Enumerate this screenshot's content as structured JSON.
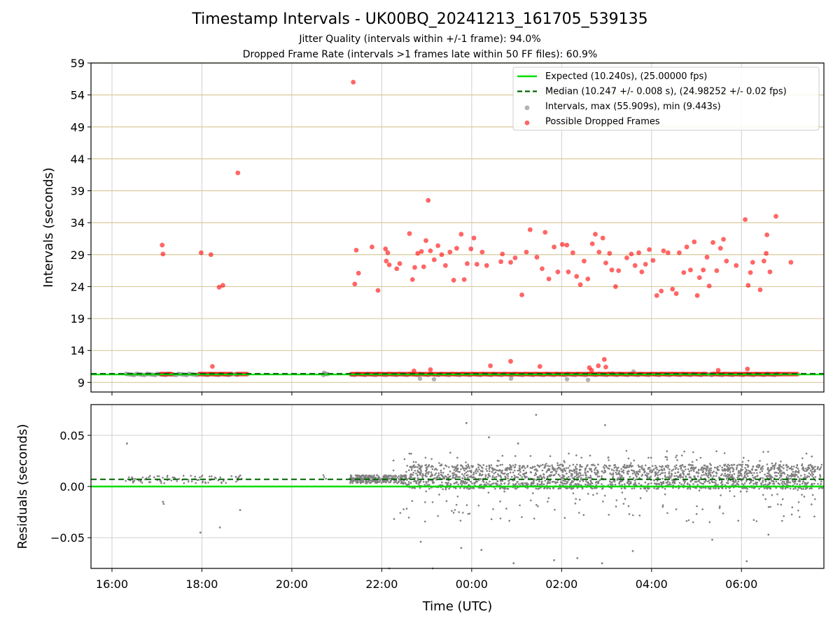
{
  "chart_data": [
    {
      "type": "scatter",
      "title": "Timestamp Intervals - UK00BQ_20241213_161705_539135",
      "subtitle_1": "Jitter Quality (intervals within +/-1 frame): 94.0%",
      "subtitle_2": "Dropped Frame Rate (intervals >1 frames late within 50 FF files): 60.9%",
      "ylabel": "Intervals (seconds)",
      "ylim": [
        7.5,
        59
      ],
      "yticks": [
        9,
        14,
        19,
        24,
        29,
        34,
        39,
        44,
        49,
        54,
        59
      ],
      "xlim_hours_utc": [
        "15:32",
        "07:50"
      ],
      "xticks": [
        "16:00",
        "18:00",
        "20:00",
        "22:00",
        "00:00",
        "02:00",
        "04:00",
        "06:00"
      ],
      "grid": true,
      "legend_position": "top-right",
      "series": [
        {
          "name": "Expected (10.240s), (25.00000 fps)",
          "kind": "hline",
          "y": 10.24,
          "color": "#00dd00",
          "style": "solid"
        },
        {
          "name": "Median (10.247 +/- 0.008 s), (24.98252 +/- 0.02 fps)",
          "kind": "hline",
          "y": 10.247,
          "color": "#006400",
          "style": "dashed"
        },
        {
          "name": "Intervals, max (55.909s), min (9.443s)",
          "kind": "scatter",
          "color": "#808080",
          "max": 55.909,
          "min": 9.443
        },
        {
          "name": "Possible Dropped Frames",
          "kind": "scatter",
          "color": "#ff0000",
          "points": [
            [
              "17:07",
              30.5
            ],
            [
              "17:08",
              29.1
            ],
            [
              "17:59",
              29.3
            ],
            [
              "18:12",
              29.0
            ],
            [
              "18:23",
              23.9
            ],
            [
              "18:28",
              24.2
            ],
            [
              "18:48",
              41.8
            ],
            [
              "21:22",
              56.0
            ],
            [
              "21:24",
              24.4
            ],
            [
              "21:26",
              29.7
            ],
            [
              "21:29",
              26.1
            ],
            [
              "21:47",
              30.2
            ],
            [
              "21:55",
              23.4
            ],
            [
              "22:05",
              29.9
            ],
            [
              "22:08",
              29.3
            ],
            [
              "22:06",
              28.0
            ],
            [
              "22:10",
              27.4
            ],
            [
              "22:20",
              26.8
            ],
            [
              "22:24",
              27.6
            ],
            [
              "22:37",
              32.3
            ],
            [
              "22:41",
              25.1
            ],
            [
              "22:44",
              27.0
            ],
            [
              "22:48",
              29.2
            ],
            [
              "22:53",
              29.5
            ],
            [
              "22:56",
              27.1
            ],
            [
              "22:59",
              31.2
            ],
            [
              "23:02",
              37.5
            ],
            [
              "23:05",
              29.6
            ],
            [
              "23:10",
              28.2
            ],
            [
              "23:15",
              30.4
            ],
            [
              "23:20",
              29.0
            ],
            [
              "23:25",
              27.3
            ],
            [
              "23:31",
              29.4
            ],
            [
              "23:36",
              25.0
            ],
            [
              "23:40",
              30.0
            ],
            [
              "23:46",
              32.2
            ],
            [
              "23:50",
              25.1
            ],
            [
              "23:54",
              27.6
            ],
            [
              "23:59",
              29.9
            ],
            [
              "00:03",
              31.6
            ],
            [
              "00:07",
              27.5
            ],
            [
              "00:14",
              29.4
            ],
            [
              "00:20",
              27.3
            ],
            [
              "00:39",
              27.9
            ],
            [
              "00:41",
              29.1
            ],
            [
              "00:52",
              27.8
            ],
            [
              "00:58",
              28.5
            ],
            [
              "01:07",
              22.7
            ],
            [
              "01:13",
              29.4
            ],
            [
              "01:18",
              32.9
            ],
            [
              "01:27",
              28.6
            ],
            [
              "01:34",
              26.8
            ],
            [
              "01:38",
              32.5
            ],
            [
              "01:43",
              25.2
            ],
            [
              "01:50",
              30.2
            ],
            [
              "01:55",
              26.3
            ],
            [
              "02:01",
              30.6
            ],
            [
              "02:07",
              30.5
            ],
            [
              "02:09",
              26.3
            ],
            [
              "02:15",
              29.3
            ],
            [
              "02:20",
              25.6
            ],
            [
              "02:25",
              24.3
            ],
            [
              "02:30",
              28.0
            ],
            [
              "02:35",
              25.2
            ],
            [
              "02:41",
              30.7
            ],
            [
              "02:45",
              32.2
            ],
            [
              "02:50",
              29.4
            ],
            [
              "02:55",
              31.6
            ],
            [
              "02:59",
              27.7
            ],
            [
              "03:04",
              29.2
            ],
            [
              "03:07",
              26.6
            ],
            [
              "03:12",
              24.0
            ],
            [
              "03:16",
              26.5
            ],
            [
              "03:27",
              28.5
            ],
            [
              "03:33",
              29.1
            ],
            [
              "03:38",
              27.3
            ],
            [
              "03:43",
              29.3
            ],
            [
              "03:47",
              26.3
            ],
            [
              "03:52",
              27.5
            ],
            [
              "03:57",
              29.8
            ],
            [
              "04:02",
              28.1
            ],
            [
              "04:07",
              22.6
            ],
            [
              "04:13",
              23.3
            ],
            [
              "04:16",
              29.6
            ],
            [
              "04:22",
              29.3
            ],
            [
              "04:28",
              23.6
            ],
            [
              "04:33",
              22.9
            ],
            [
              "04:37",
              29.3
            ],
            [
              "04:43",
              26.2
            ],
            [
              "04:47",
              30.2
            ],
            [
              "04:52",
              26.6
            ],
            [
              "04:57",
              31.0
            ],
            [
              "05:01",
              22.6
            ],
            [
              "05:04",
              25.4
            ],
            [
              "05:09",
              26.6
            ],
            [
              "05:14",
              28.6
            ],
            [
              "05:17",
              24.1
            ],
            [
              "05:22",
              30.9
            ],
            [
              "05:27",
              26.5
            ],
            [
              "05:32",
              30.0
            ],
            [
              "05:36",
              31.4
            ],
            [
              "05:40",
              28.0
            ],
            [
              "05:53",
              27.3
            ],
            [
              "06:05",
              34.5
            ],
            [
              "06:09",
              24.2
            ],
            [
              "06:12",
              26.2
            ],
            [
              "06:15",
              27.8
            ],
            [
              "06:25",
              23.5
            ],
            [
              "06:30",
              28.0
            ],
            [
              "06:33",
              29.2
            ],
            [
              "06:34",
              32.1
            ],
            [
              "06:38",
              26.3
            ],
            [
              "06:46",
              35.0
            ],
            [
              "07:06",
              27.8
            ],
            [
              "18:14",
              11.5
            ],
            [
              "22:43",
              10.8
            ],
            [
              "23:05",
              11.0
            ],
            [
              "00:25",
              11.6
            ],
            [
              "00:52",
              12.3
            ],
            [
              "01:31",
              11.5
            ],
            [
              "02:37",
              11.3
            ],
            [
              "02:40",
              10.9
            ],
            [
              "02:49",
              11.6
            ],
            [
              "02:57",
              12.6
            ],
            [
              "02:59",
              11.4
            ],
            [
              "05:29",
              10.9
            ],
            [
              "06:08",
              11.1
            ]
          ]
        }
      ]
    },
    {
      "type": "scatter",
      "xlabel": "Time (UTC)",
      "ylabel": "Residuals (seconds)",
      "ylim": [
        -0.08,
        0.08
      ],
      "yticks": [
        "−0.05",
        "0.00",
        "0.05"
      ],
      "xticks": [
        "16:00",
        "18:00",
        "20:00",
        "22:00",
        "00:00",
        "02:00",
        "04:00",
        "06:00"
      ],
      "grid": true,
      "series": [
        {
          "name": "Expected",
          "kind": "hline",
          "y": 0.0,
          "color": "#00dd00",
          "style": "solid"
        },
        {
          "name": "Median",
          "kind": "hline",
          "y": 0.007,
          "color": "#006400",
          "style": "dashed"
        },
        {
          "name": "Residuals",
          "kind": "scatter",
          "color": "#808080",
          "points": [
            [
              "16:20",
              0.042
            ],
            [
              "17:08",
              -0.015
            ],
            [
              "17:09",
              -0.017
            ],
            [
              "17:58",
              -0.045
            ],
            [
              "18:24",
              -0.04
            ],
            [
              "18:51",
              -0.023
            ],
            [
              "22:10",
              -0.08
            ],
            [
              "22:52",
              -0.054
            ],
            [
              "23:08",
              -0.08
            ],
            [
              "23:46",
              -0.06
            ],
            [
              "23:53",
              0.062
            ],
            [
              "00:13",
              -0.062
            ],
            [
              "00:56",
              -0.075
            ],
            [
              "01:50",
              -0.072
            ],
            [
              "02:21",
              -0.07
            ],
            [
              "02:54",
              -0.075
            ],
            [
              "02:58",
              0.06
            ],
            [
              "01:26",
              0.07
            ],
            [
              "03:35",
              -0.063
            ],
            [
              "05:21",
              -0.052
            ],
            [
              "06:07",
              -0.073
            ],
            [
              "06:36",
              -0.047
            ],
            [
              "01:02",
              0.042
            ],
            [
              "00:23",
              0.048
            ]
          ]
        }
      ]
    }
  ]
}
